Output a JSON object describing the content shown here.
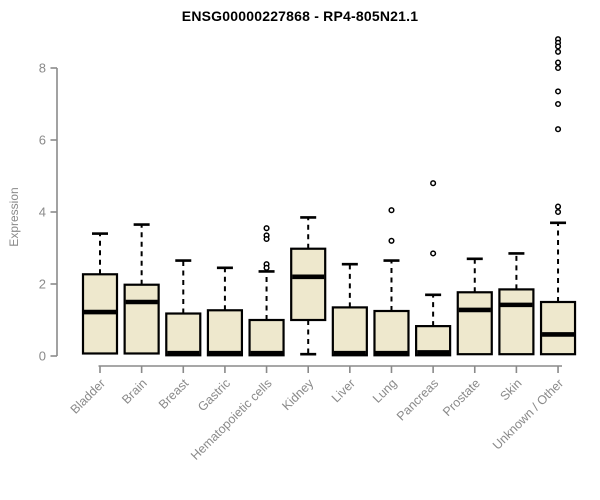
{
  "title": "ENSG00000227868 - RP4-805N21.1",
  "chart_data": {
    "type": "boxplot",
    "title": "ENSG00000227868 - RP4-805N21.1",
    "xlabel": "",
    "ylabel": "Expression",
    "ylim": [
      0,
      8.8
    ],
    "y_ticks": [
      0,
      2,
      4,
      6,
      8
    ],
    "grid": false,
    "legend": "none",
    "colors": {
      "box_fill": "#EEE8CD",
      "box_border": "#000000",
      "median": "#000000",
      "whisker": "#000000",
      "outlier_stroke": "#000000",
      "axis": "#8a8a8a",
      "axis_text": "#8a8a8a",
      "title_text": "#000000",
      "background": "#ffffff"
    },
    "categories": [
      "Bladder",
      "Brain",
      "Breast",
      "Gastric",
      "Hematopoietic cells",
      "Kidney",
      "Liver",
      "Lung",
      "Pancreas",
      "Prostate",
      "Skin",
      "Unknown / Other"
    ],
    "boxes": [
      {
        "label": "Bladder",
        "whisker_low": 0.07,
        "q1": 0.07,
        "median": 1.22,
        "q3": 2.27,
        "whisker_high": 3.4,
        "outliers": []
      },
      {
        "label": "Brain",
        "whisker_low": 0.07,
        "q1": 0.07,
        "median": 1.5,
        "q3": 1.98,
        "whisker_high": 3.65,
        "outliers": []
      },
      {
        "label": "Breast",
        "whisker_low": 0.02,
        "q1": 0.02,
        "median": 0.08,
        "q3": 1.18,
        "whisker_high": 2.65,
        "outliers": []
      },
      {
        "label": "Gastric",
        "whisker_low": 0.02,
        "q1": 0.02,
        "median": 0.08,
        "q3": 1.27,
        "whisker_high": 2.45,
        "outliers": []
      },
      {
        "label": "Hematopoietic cells",
        "whisker_low": 0.02,
        "q1": 0.02,
        "median": 0.08,
        "q3": 1.0,
        "whisker_high": 2.35,
        "outliers": [
          3.55,
          3.35,
          3.25,
          2.55,
          2.45
        ]
      },
      {
        "label": "Kidney",
        "whisker_low": 0.05,
        "q1": 1.0,
        "median": 2.2,
        "q3": 2.98,
        "whisker_high": 3.85,
        "outliers": []
      },
      {
        "label": "Liver",
        "whisker_low": 0.02,
        "q1": 0.02,
        "median": 0.08,
        "q3": 1.35,
        "whisker_high": 2.55,
        "outliers": []
      },
      {
        "label": "Lung",
        "whisker_low": 0.02,
        "q1": 0.02,
        "median": 0.08,
        "q3": 1.25,
        "whisker_high": 2.65,
        "outliers": [
          4.05,
          3.2
        ]
      },
      {
        "label": "Pancreas",
        "whisker_low": 0.02,
        "q1": 0.02,
        "median": 0.1,
        "q3": 0.83,
        "whisker_high": 1.7,
        "outliers": [
          4.8,
          2.85
        ]
      },
      {
        "label": "Prostate",
        "whisker_low": 0.05,
        "q1": 0.05,
        "median": 1.28,
        "q3": 1.77,
        "whisker_high": 2.7,
        "outliers": []
      },
      {
        "label": "Skin",
        "whisker_low": 0.05,
        "q1": 0.05,
        "median": 1.42,
        "q3": 1.85,
        "whisker_high": 2.85,
        "outliers": []
      },
      {
        "label": "Unknown / Other",
        "whisker_low": 0.05,
        "q1": 0.05,
        "median": 0.6,
        "q3": 1.5,
        "whisker_high": 3.7,
        "outliers": [
          8.8,
          8.7,
          8.6,
          8.45,
          8.15,
          8.0,
          7.35,
          7.0,
          6.3,
          4.15,
          4.0
        ]
      }
    ]
  }
}
